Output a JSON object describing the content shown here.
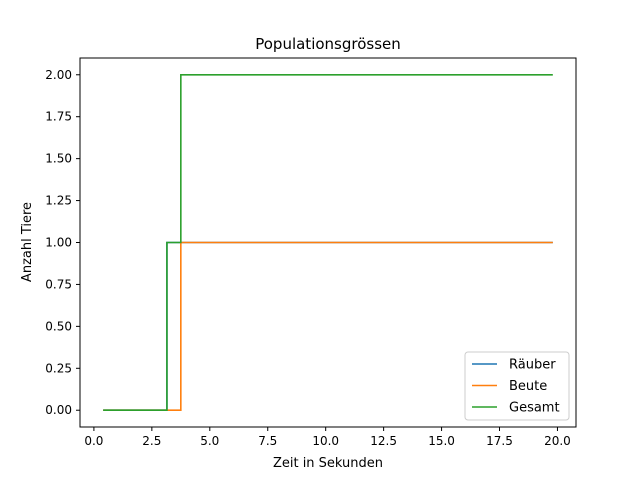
{
  "chart_data": {
    "type": "line",
    "title": "Populationsgrössen",
    "xlabel": "Zeit in Sekunden",
    "ylabel": "Anzahl Tiere",
    "xlim": [
      -0.6,
      20.8
    ],
    "ylim": [
      -0.1,
      2.1
    ],
    "xticks": [
      0.0,
      2.5,
      5.0,
      7.5,
      10.0,
      12.5,
      15.0,
      17.5,
      20.0
    ],
    "xtick_labels": [
      "0.0",
      "2.5",
      "5.0",
      "7.5",
      "10.0",
      "12.5",
      "15.0",
      "17.5",
      "20.0"
    ],
    "yticks": [
      0.0,
      0.25,
      0.5,
      0.75,
      1.0,
      1.25,
      1.5,
      1.75,
      2.0
    ],
    "ytick_labels": [
      "0.00",
      "0.25",
      "0.50",
      "0.75",
      "1.00",
      "1.25",
      "1.50",
      "1.75",
      "2.00"
    ],
    "grid": false,
    "legend_position": "lower-right",
    "series": [
      {
        "name": "Räuber",
        "color": "#1f77b4",
        "points": [
          [
            0.4,
            0
          ],
          [
            3.15,
            0
          ],
          [
            3.15,
            1
          ],
          [
            19.8,
            1
          ]
        ]
      },
      {
        "name": "Beute",
        "color": "#ff7f0e",
        "points": [
          [
            0.4,
            0
          ],
          [
            3.75,
            0
          ],
          [
            3.75,
            1
          ],
          [
            19.8,
            1
          ]
        ]
      },
      {
        "name": "Gesamt",
        "color": "#2ca02c",
        "points": [
          [
            0.4,
            0
          ],
          [
            3.15,
            0
          ],
          [
            3.15,
            1
          ],
          [
            3.75,
            1
          ],
          [
            3.75,
            2
          ],
          [
            19.8,
            2
          ]
        ]
      }
    ]
  }
}
